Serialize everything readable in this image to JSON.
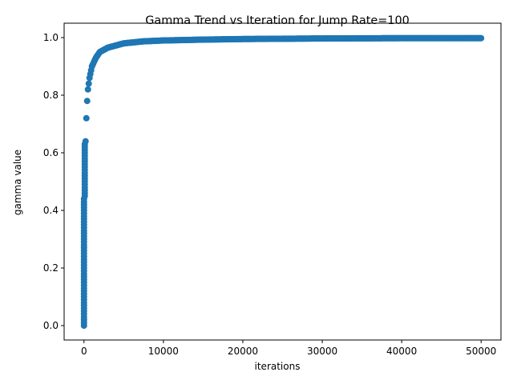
{
  "chart_data": {
    "type": "scatter",
    "title": "Gamma Trend vs Iteration for Jump Rate=100",
    "xlabel": "iterations",
    "ylabel": "gamma value",
    "xlim": [
      -2500,
      52500
    ],
    "ylim": [
      -0.05,
      1.05
    ],
    "x_ticks": [
      0,
      10000,
      20000,
      30000,
      40000,
      50000
    ],
    "x_tick_labels": [
      "0",
      "10000",
      "20000",
      "30000",
      "40000",
      "50000"
    ],
    "y_ticks": [
      0.0,
      0.2,
      0.4,
      0.6,
      0.8,
      1.0
    ],
    "y_tick_labels": [
      "0.0",
      "0.2",
      "0.4",
      "0.6",
      "0.8",
      "1.0"
    ],
    "grid": false,
    "legend": "none",
    "marker_color": "#1f77b4",
    "x_step": 100,
    "x_max": 50000,
    "series": [
      {
        "values": [
          [
            0,
            0.0
          ],
          [
            100,
            0.44
          ],
          [
            200,
            0.64
          ],
          [
            300,
            0.72
          ],
          [
            400,
            0.78
          ],
          [
            500,
            0.82
          ],
          [
            700,
            0.86
          ],
          [
            1000,
            0.9
          ],
          [
            1500,
            0.93
          ],
          [
            2000,
            0.95
          ],
          [
            3000,
            0.965
          ],
          [
            5000,
            0.98
          ],
          [
            7500,
            0.987
          ],
          [
            10000,
            0.99
          ],
          [
            15000,
            0.993
          ],
          [
            20000,
            0.995
          ],
          [
            30000,
            0.997
          ],
          [
            40000,
            0.998
          ],
          [
            50000,
            0.998
          ]
        ]
      }
    ]
  }
}
